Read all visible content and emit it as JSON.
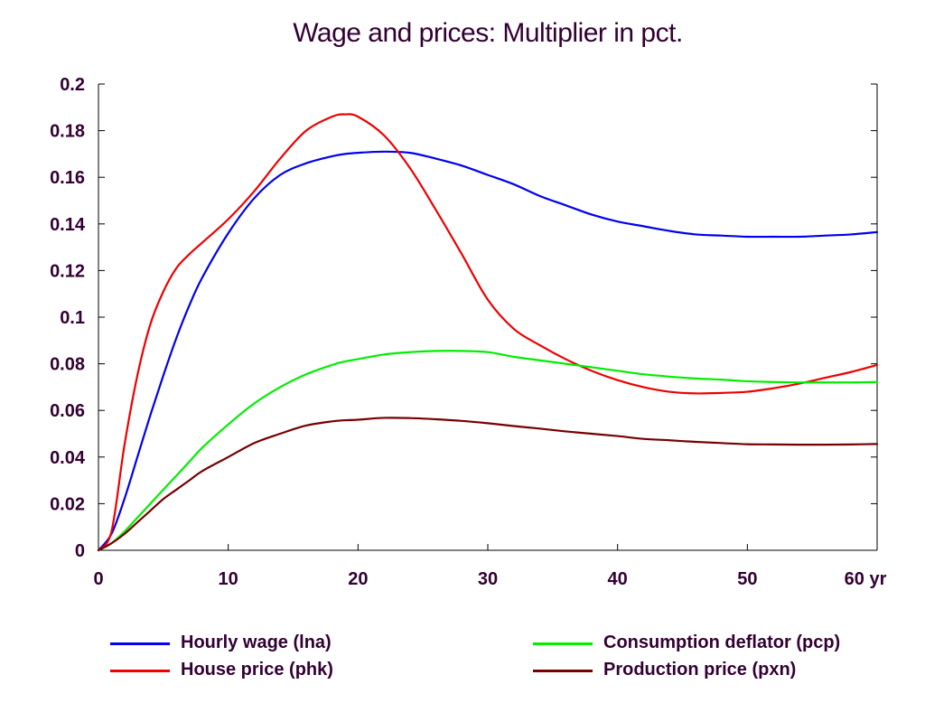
{
  "chart_data": {
    "type": "line",
    "title": "Wage and prices: Multiplier in pct.",
    "xlabel": "",
    "ylabel": "",
    "xlim": [
      0,
      60
    ],
    "ylim": [
      0,
      0.2
    ],
    "x_ticks": [
      "0",
      "10",
      "20",
      "30",
      "40",
      "50",
      "60 yr"
    ],
    "x_tick_values": [
      0,
      10,
      20,
      30,
      40,
      50,
      60
    ],
    "y_ticks": [
      "0",
      "0.02",
      "0.04",
      "0.06",
      "0.08",
      "0.1",
      "0.12",
      "0.14",
      "0.16",
      "0.18",
      "0.2"
    ],
    "y_tick_values": [
      0,
      0.02,
      0.04,
      0.06,
      0.08,
      0.1,
      0.12,
      0.14,
      0.16,
      0.18,
      0.2
    ],
    "grid": false,
    "legend_position": "bottom",
    "x": [
      0,
      1,
      2,
      3,
      4,
      5,
      6,
      7,
      8,
      10,
      12,
      14,
      16,
      18,
      19,
      20,
      22,
      24,
      26,
      28,
      30,
      32,
      34,
      36,
      38,
      40,
      42,
      44,
      46,
      48,
      50,
      52,
      54,
      56,
      58,
      60
    ],
    "series": [
      {
        "name": "Hourly wage (lna)",
        "color": "#0000ee",
        "values": [
          0,
          0.007,
          0.022,
          0.04,
          0.058,
          0.075,
          0.091,
          0.105,
          0.117,
          0.136,
          0.151,
          0.161,
          0.166,
          0.169,
          0.17,
          0.1705,
          0.171,
          0.1705,
          0.168,
          0.165,
          0.161,
          0.157,
          0.152,
          0.148,
          0.144,
          0.141,
          0.139,
          0.137,
          0.1355,
          0.135,
          0.1345,
          0.1345,
          0.1345,
          0.135,
          0.1355,
          0.1365
        ]
      },
      {
        "name": "House price (phk)",
        "color": "#ee0000",
        "values": [
          0,
          0.008,
          0.045,
          0.075,
          0.097,
          0.111,
          0.121,
          0.127,
          0.132,
          0.142,
          0.154,
          0.168,
          0.18,
          0.186,
          0.187,
          0.186,
          0.178,
          0.164,
          0.146,
          0.127,
          0.1075,
          0.095,
          0.088,
          0.082,
          0.077,
          0.073,
          0.07,
          0.068,
          0.0673,
          0.0675,
          0.068,
          0.0695,
          0.0715,
          0.074,
          0.0765,
          0.0795
        ]
      },
      {
        "name": "Consumption deflator (pcp)",
        "color": "#00ee00",
        "values": [
          0,
          0.003,
          0.008,
          0.014,
          0.02,
          0.026,
          0.032,
          0.038,
          0.044,
          0.054,
          0.063,
          0.07,
          0.0755,
          0.0795,
          0.081,
          0.082,
          0.084,
          0.085,
          0.0855,
          0.0855,
          0.085,
          0.083,
          0.0815,
          0.08,
          0.0785,
          0.077,
          0.0755,
          0.0745,
          0.0737,
          0.0732,
          0.0725,
          0.0722,
          0.072,
          0.072,
          0.072,
          0.0722
        ]
      },
      {
        "name": "Production price (pxn)",
        "color": "#770000",
        "values": [
          0,
          0.003,
          0.007,
          0.012,
          0.017,
          0.022,
          0.026,
          0.03,
          0.034,
          0.04,
          0.046,
          0.05,
          0.0535,
          0.0553,
          0.0558,
          0.056,
          0.0568,
          0.0567,
          0.0562,
          0.0555,
          0.0545,
          0.0533,
          0.0522,
          0.051,
          0.05,
          0.049,
          0.0478,
          0.0472,
          0.0465,
          0.046,
          0.0455,
          0.0454,
          0.0453,
          0.0453,
          0.0454,
          0.0456
        ]
      }
    ]
  }
}
